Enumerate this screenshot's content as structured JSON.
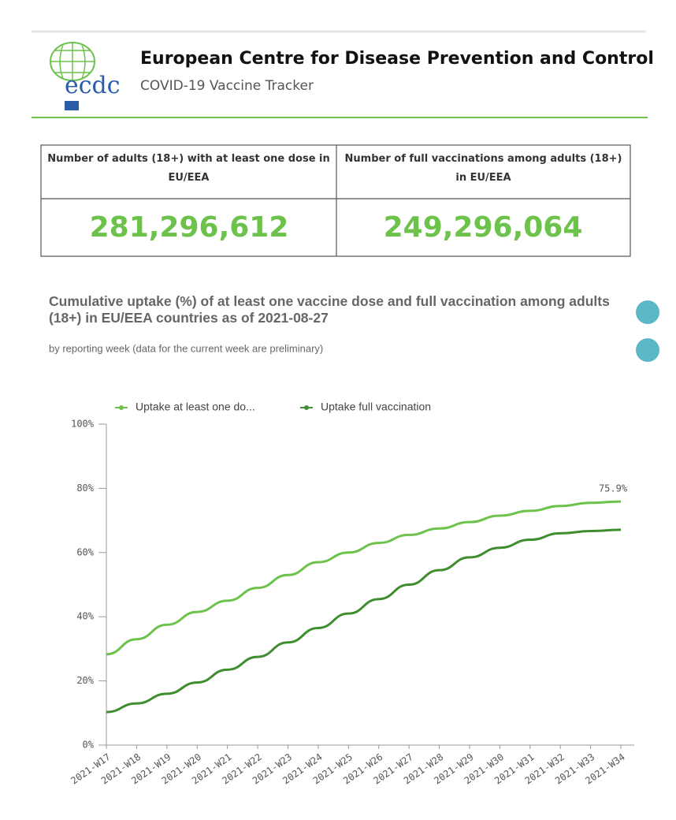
{
  "header": {
    "org": "European Centre for Disease Prevention and Control",
    "subtitle": "COVID-19 Vaccine Tracker",
    "logo_text": "ecdc"
  },
  "kpis": [
    {
      "label": "Number of adults (18+) with at least one dose in EU/EEA",
      "value": "281,296,612"
    },
    {
      "label": "Number of full vaccinations among adults (18+) in EU/EEA",
      "value": "249,296,064"
    }
  ],
  "chart_data": {
    "type": "line",
    "title": "Cumulative uptake (%) of at least one vaccine dose and full vaccination among adults (18+) in EU/EEA countries as of 2021-08-27",
    "subtitle": "by reporting week (data for the current week are preliminary)",
    "categories": [
      "2021-W17",
      "2021-W18",
      "2021-W19",
      "2021-W20",
      "2021-W21",
      "2021-W22",
      "2021-W23",
      "2021-W24",
      "2021-W25",
      "2021-W26",
      "2021-W27",
      "2021-W28",
      "2021-W29",
      "2021-W30",
      "2021-W31",
      "2021-W32",
      "2021-W33",
      "2021-W34"
    ],
    "series": [
      {
        "name": "Uptake at least one do...",
        "color": "#6cc24a",
        "values": [
          28.3,
          33,
          37.5,
          41.5,
          45,
          49,
          53,
          57,
          60,
          63,
          65.5,
          67.5,
          69.5,
          71.5,
          73,
          74.5,
          75.5,
          75.9
        ],
        "value_labels": [
          null,
          null,
          null,
          null,
          null,
          null,
          null,
          null,
          null,
          null,
          null,
          null,
          null,
          null,
          null,
          null,
          null,
          "75.9%"
        ]
      },
      {
        "name": "Uptake full vaccination",
        "color": "#3e8e2f",
        "values": [
          10.3,
          13,
          16,
          19.5,
          23.5,
          27.5,
          32,
          36.5,
          41,
          45.5,
          50,
          54.5,
          58.5,
          61.5,
          64,
          66,
          66.7,
          67.1
        ]
      }
    ],
    "ylim": [
      0,
      100
    ],
    "yticks": [
      {
        "value": 0,
        "label": "0%"
      },
      {
        "value": 20,
        "label": "20%"
      },
      {
        "value": 40,
        "label": "40%"
      },
      {
        "value": 60,
        "label": "60%"
      },
      {
        "value": 80,
        "label": "80%"
      },
      {
        "value": 100,
        "label": "100%"
      }
    ],
    "legend": "top-left"
  }
}
